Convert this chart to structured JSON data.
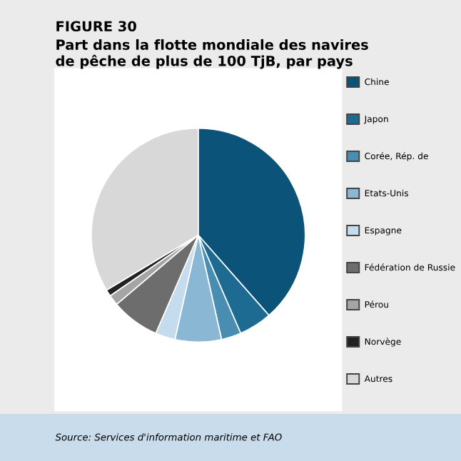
{
  "chart_data": {
    "type": "pie",
    "title": "FIGURE 30",
    "subtitle": "Part dans la flotte mondiale des navires\nde pêche de plus de 100 TjB, par pays",
    "categories": [
      "Chine",
      "Japon",
      "Corée, Rép. de",
      "Etats-Unis",
      "Espagne",
      "Fédération de Russie",
      "Pérou",
      "Norvège",
      "Autres"
    ],
    "values": [
      38.5,
      5,
      3,
      7,
      3,
      7.3,
      1.6,
      1,
      33.6
    ],
    "colors": [
      "#0b5378",
      "#1d6b93",
      "#4a8db2",
      "#8ab8d4",
      "#c4dced",
      "#6d6d6d",
      "#a5a5a5",
      "#222222",
      "#d8d8d8"
    ],
    "legend": "right",
    "annotations": [
      "Source: Services d'information maritime et FAO"
    ]
  }
}
